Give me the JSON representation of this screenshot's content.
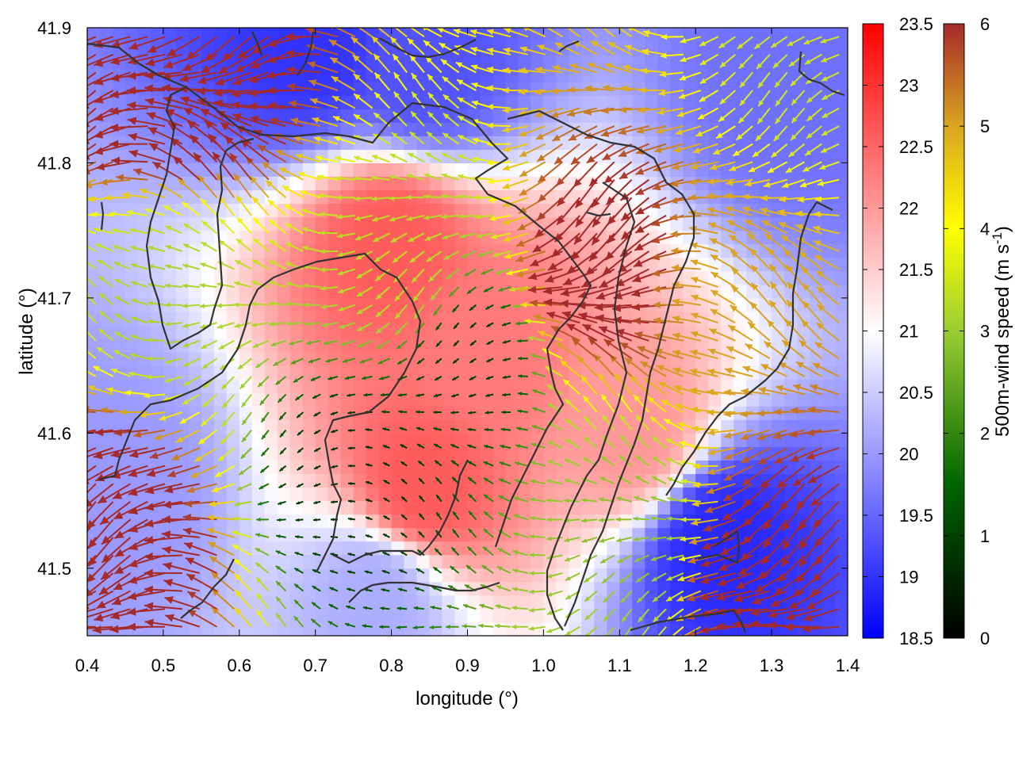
{
  "chart_data": {
    "type": "heatmap",
    "xlabel": "longitude (°)",
    "ylabel": "latitude (°)",
    "xlim": [
      0.4,
      1.4
    ],
    "ylim": [
      41.45,
      41.9
    ],
    "x_ticks": [
      "0.4",
      "0.5",
      "0.6",
      "0.7",
      "0.8",
      "0.9",
      "1.0",
      "1.1",
      "1.2",
      "1.3",
      "1.4"
    ],
    "y_ticks": [
      "41.5",
      "41.6",
      "41.7",
      "41.8",
      "41.9"
    ],
    "temperature_colorbar": {
      "range": [
        18.5,
        23.5
      ],
      "ticks": [
        "18.5",
        "19",
        "19.5",
        "20",
        "20.5",
        "21",
        "21.5",
        "22",
        "22.5",
        "23",
        "23.5"
      ],
      "colors": [
        "#0000ff",
        "#ffffff",
        "#ff0000"
      ]
    },
    "wind_colorbar": {
      "label": "500m-wind speed (m s",
      "label_sup": "-1",
      "label_end": ")",
      "range": [
        0,
        6
      ],
      "ticks": [
        "0",
        "1",
        "2",
        "3",
        "4",
        "5",
        "6"
      ],
      "colors": [
        "#000000",
        "#006400",
        "#9acd32",
        "#ffff00",
        "#daa520",
        "#a52a2a"
      ]
    },
    "coastline_color": "#333333",
    "temperature_field_centers": [
      {
        "lon": 0.8,
        "lat": 41.74,
        "t": 22.6
      },
      {
        "lon": 0.84,
        "lat": 41.56,
        "t": 22.6
      },
      {
        "lon": 0.93,
        "lat": 41.66,
        "t": 22.3
      },
      {
        "lon": 1.12,
        "lat": 41.6,
        "t": 22.0
      },
      {
        "lon": 0.7,
        "lat": 41.89,
        "t": 19.0
      },
      {
        "lon": 0.84,
        "lat": 41.87,
        "t": 19.3
      },
      {
        "lon": 1.23,
        "lat": 41.52,
        "t": 18.9
      },
      {
        "lon": 1.33,
        "lat": 41.86,
        "t": 19.6
      },
      {
        "lon": 0.44,
        "lat": 41.56,
        "t": 20.0
      },
      {
        "lon": 0.78,
        "lat": 41.48,
        "t": 20.2
      }
    ],
    "wind_field_centers": [
      {
        "lon": 0.75,
        "lat": 41.57,
        "speed": 0.6
      },
      {
        "lon": 0.9,
        "lat": 41.66,
        "speed": 0.7
      },
      {
        "lon": 1.12,
        "lat": 41.53,
        "speed": 2.3
      },
      {
        "lon": 0.82,
        "lat": 41.72,
        "speed": 2.8
      },
      {
        "lon": 0.52,
        "lat": 41.7,
        "speed": 2.6
      },
      {
        "lon": 1.36,
        "lat": 41.88,
        "speed": 3.0
      },
      {
        "lon": 0.55,
        "lat": 41.85,
        "speed": 7.0
      },
      {
        "lon": 0.45,
        "lat": 41.53,
        "speed": 7.0
      },
      {
        "lon": 1.32,
        "lat": 41.5,
        "speed": 6.5
      },
      {
        "lon": 1.1,
        "lat": 41.72,
        "speed": 6.5
      },
      {
        "lon": 1.25,
        "lat": 41.7,
        "speed": 4.8
      }
    ]
  }
}
